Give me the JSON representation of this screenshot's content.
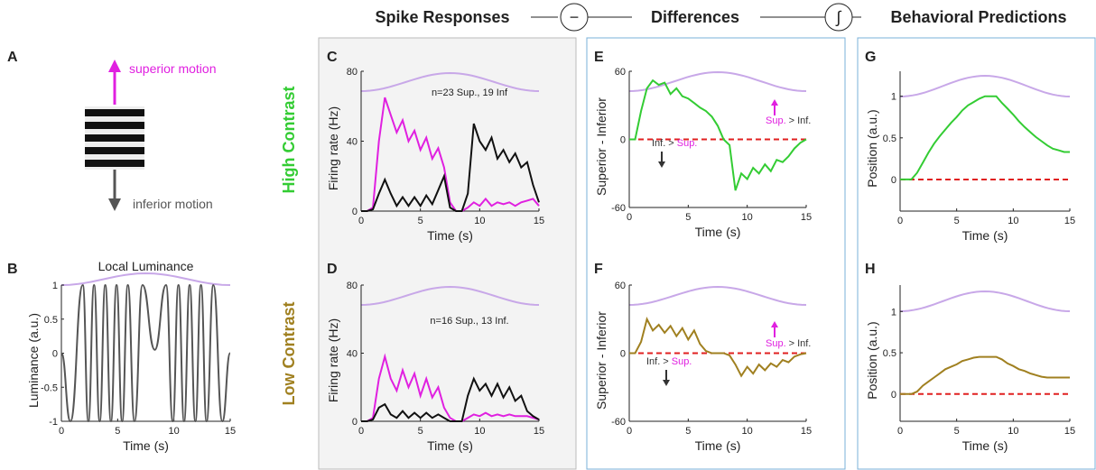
{
  "header": {
    "left": "Spike Responses",
    "op1": "−",
    "middle": "Differences",
    "op2": "∫",
    "right": "Behavioral Predictions"
  },
  "rows": [
    "High Contrast",
    "Low Contrast"
  ],
  "diagram": {
    "label": "A",
    "top": "superior motion",
    "bottom": "inferior motion"
  },
  "chart_data": [
    {
      "type": "line",
      "label": "B",
      "title": "Local Luminance",
      "xlabel": "Time (s)",
      "ylabel": "Luminance (a.u.)",
      "smooth": true,
      "x": [
        0,
        0.8,
        1.9,
        2.4,
        2.9,
        3.4,
        3.9,
        4.4,
        4.9,
        5.4,
        5.9,
        6.5,
        7.2,
        8.3,
        9.3,
        9.9,
        10.4,
        10.9,
        11.4,
        11.9,
        12.4,
        12.9,
        13.5,
        14.3,
        15
      ],
      "series": [
        {
          "color": "#555555",
          "values": [
            0,
            -1,
            1,
            -1,
            1,
            -1,
            1,
            -1,
            1,
            -1,
            1,
            -1,
            1,
            0.05,
            1,
            -1,
            1,
            -1,
            1,
            -1,
            1,
            -1,
            1,
            -1,
            0
          ]
        }
      ],
      "xlim": [
        0,
        15
      ],
      "ylim": [
        -1,
        1
      ],
      "xticks": [
        0,
        5,
        10,
        15
      ],
      "yticks": [
        -1,
        -0.5,
        0,
        0.5,
        1
      ]
    },
    {
      "type": "line",
      "label": "C",
      "xlabel": "Time (s)",
      "ylabel": "Firing rate (Hz)",
      "annotations": [
        "n=23 Sup., 19 Inf"
      ],
      "x": [
        0,
        0.5,
        1,
        1.5,
        2,
        2.5,
        3,
        3.5,
        4,
        4.5,
        5,
        5.5,
        6,
        6.5,
        7,
        7.5,
        8,
        8.5,
        9,
        9.5,
        10,
        10.5,
        11,
        11.5,
        12,
        12.5,
        13,
        13.5,
        14,
        14.5,
        15
      ],
      "series": [
        {
          "color": "#e020e0",
          "values": [
            0,
            0,
            2,
            40,
            65,
            55,
            45,
            52,
            40,
            46,
            35,
            42,
            30,
            36,
            25,
            5,
            0,
            0,
            2,
            5,
            3,
            7,
            3,
            5,
            4,
            5,
            3,
            5,
            6,
            7,
            3
          ]
        },
        {
          "color": "#111111",
          "values": [
            0,
            0,
            1,
            10,
            18,
            10,
            3,
            8,
            3,
            8,
            3,
            9,
            4,
            12,
            20,
            2,
            0,
            0,
            10,
            50,
            40,
            35,
            42,
            30,
            35,
            28,
            33,
            25,
            28,
            15,
            5
          ]
        }
      ],
      "xlim": [
        0,
        15
      ],
      "ylim": [
        0,
        80
      ],
      "xticks": [
        0,
        5,
        10,
        15
      ],
      "yticks": [
        0,
        40,
        80
      ]
    },
    {
      "type": "line",
      "label": "D",
      "xlabel": "Time (s)",
      "ylabel": "Firing rate (Hz)",
      "annotations": [
        "n=16 Sup., 13 Inf."
      ],
      "x": [
        0,
        0.5,
        1,
        1.5,
        2,
        2.5,
        3,
        3.5,
        4,
        4.5,
        5,
        5.5,
        6,
        6.5,
        7,
        7.5,
        8,
        8.5,
        9,
        9.5,
        10,
        10.5,
        11,
        11.5,
        12,
        12.5,
        13,
        13.5,
        14,
        14.5,
        15
      ],
      "series": [
        {
          "color": "#e020e0",
          "values": [
            0,
            0,
            2,
            25,
            38,
            25,
            18,
            30,
            20,
            28,
            15,
            25,
            14,
            20,
            8,
            2,
            0,
            0,
            2,
            4,
            3,
            5,
            3,
            4,
            3,
            4,
            3,
            3,
            3,
            2,
            1
          ]
        },
        {
          "color": "#111111",
          "values": [
            0,
            0,
            1,
            8,
            10,
            4,
            2,
            6,
            2,
            5,
            2,
            5,
            2,
            4,
            2,
            0,
            0,
            0,
            15,
            25,
            18,
            22,
            15,
            22,
            14,
            20,
            12,
            15,
            6,
            3,
            1
          ]
        }
      ],
      "xlim": [
        0,
        15
      ],
      "ylim": [
        0,
        80
      ],
      "xticks": [
        0,
        5,
        10,
        15
      ],
      "yticks": [
        0,
        40,
        80
      ]
    },
    {
      "type": "line",
      "label": "E",
      "xlabel": "Time (s)",
      "ylabel": "Superior - Inferior",
      "comparisons": [
        {
          "first": "Sup.",
          "op": ">",
          "second": "Inf."
        },
        {
          "first": "Inf.",
          "op": ">",
          "second": "Sup."
        }
      ],
      "x": [
        0,
        0.5,
        1,
        1.5,
        2,
        2.5,
        3,
        3.5,
        4,
        4.5,
        5,
        5.5,
        6,
        6.5,
        7,
        7.5,
        8,
        8.5,
        9,
        9.5,
        10,
        10.5,
        11,
        11.5,
        12,
        12.5,
        13,
        13.5,
        14,
        14.5,
        15
      ],
      "series": [
        {
          "color": "#33cc33",
          "values": [
            0,
            0,
            25,
            45,
            52,
            48,
            50,
            40,
            45,
            38,
            36,
            32,
            28,
            25,
            20,
            12,
            0,
            -5,
            -45,
            -30,
            -35,
            -25,
            -30,
            -22,
            -28,
            -18,
            -20,
            -15,
            -8,
            -3,
            0
          ]
        }
      ],
      "reference_line": {
        "y": 0,
        "color": "#e02020"
      },
      "xlim": [
        0,
        15
      ],
      "ylim": [
        -60,
        60
      ],
      "xticks": [
        0,
        5,
        10,
        15
      ],
      "yticks": [
        -60,
        0,
        60
      ]
    },
    {
      "type": "line",
      "label": "F",
      "xlabel": "Time (s)",
      "ylabel": "Superior - Inferior",
      "comparisons": [
        {
          "first": "Sup.",
          "op": ">",
          "second": "Inf."
        },
        {
          "first": "Inf.",
          "op": ">",
          "second": "Sup."
        }
      ],
      "x": [
        0,
        0.5,
        1,
        1.5,
        2,
        2.5,
        3,
        3.5,
        4,
        4.5,
        5,
        5.5,
        6,
        6.5,
        7,
        7.5,
        8,
        8.5,
        9,
        9.5,
        10,
        10.5,
        11,
        11.5,
        12,
        12.5,
        13,
        13.5,
        14,
        14.5,
        15
      ],
      "series": [
        {
          "color": "#a08020",
          "values": [
            0,
            0,
            10,
            30,
            20,
            25,
            18,
            24,
            15,
            22,
            12,
            20,
            8,
            2,
            0,
            0,
            0,
            -2,
            -10,
            -20,
            -12,
            -18,
            -10,
            -15,
            -9,
            -12,
            -6,
            -8,
            -3,
            -1,
            0
          ]
        }
      ],
      "reference_line": {
        "y": 0,
        "color": "#e02020"
      },
      "xlim": [
        0,
        15
      ],
      "ylim": [
        -60,
        60
      ],
      "xticks": [
        0,
        5,
        10,
        15
      ],
      "yticks": [
        -60,
        0,
        60
      ]
    },
    {
      "type": "line",
      "label": "G",
      "xlabel": "Time (s)",
      "ylabel": "Position (a.u.)",
      "x": [
        0,
        0.5,
        1,
        1.5,
        2,
        2.5,
        3,
        3.5,
        4,
        4.5,
        5,
        5.5,
        6,
        6.5,
        7,
        7.5,
        8,
        8.5,
        9,
        9.5,
        10,
        10.5,
        11,
        11.5,
        12,
        12.5,
        13,
        13.5,
        14,
        14.5,
        15
      ],
      "series": [
        {
          "color": "#33cc33",
          "values": [
            0,
            0,
            0,
            0.08,
            0.2,
            0.32,
            0.43,
            0.52,
            0.6,
            0.68,
            0.75,
            0.83,
            0.89,
            0.93,
            0.97,
            1,
            1,
            1,
            0.92,
            0.85,
            0.78,
            0.7,
            0.63,
            0.57,
            0.51,
            0.46,
            0.41,
            0.37,
            0.35,
            0.33,
            0.33
          ]
        }
      ],
      "reference_line": {
        "y": 0,
        "color": "#e02020"
      },
      "xlim": [
        0,
        15
      ],
      "ylim": [
        -0.38,
        1.3
      ],
      "xticks": [
        0,
        5,
        10,
        15
      ],
      "yticks": [
        0,
        0.5,
        1
      ]
    },
    {
      "type": "line",
      "label": "H",
      "xlabel": "Time (s)",
      "ylabel": "Position (a.u.)",
      "x": [
        0,
        0.5,
        1,
        1.5,
        2,
        2.5,
        3,
        3.5,
        4,
        4.5,
        5,
        5.5,
        6,
        6.5,
        7,
        7.5,
        8,
        8.5,
        9,
        9.5,
        10,
        10.5,
        11,
        11.5,
        12,
        12.5,
        13,
        13.5,
        14,
        14.5,
        15
      ],
      "series": [
        {
          "color": "#a08020",
          "values": [
            0,
            0,
            0,
            0.03,
            0.1,
            0.15,
            0.2,
            0.25,
            0.3,
            0.33,
            0.36,
            0.4,
            0.42,
            0.44,
            0.45,
            0.45,
            0.45,
            0.45,
            0.42,
            0.37,
            0.34,
            0.3,
            0.28,
            0.25,
            0.23,
            0.21,
            0.2,
            0.2,
            0.2,
            0.2,
            0.2
          ]
        }
      ],
      "reference_line": {
        "y": 0,
        "color": "#e02020"
      },
      "xlim": [
        0,
        15
      ],
      "ylim": [
        -0.33,
        1.32
      ],
      "xticks": [
        0,
        5,
        10,
        15
      ],
      "yticks": [
        0,
        0.5,
        1
      ]
    }
  ]
}
